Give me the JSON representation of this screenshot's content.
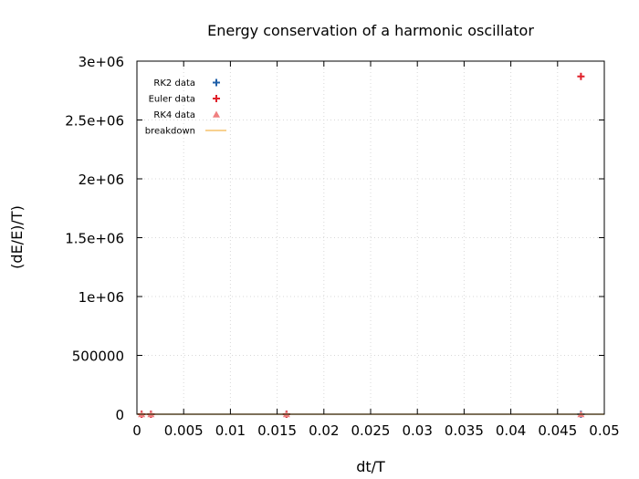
{
  "chart_data": {
    "type": "scatter",
    "title": "Energy conservation of a harmonic oscillator",
    "xlabel": "dt/T",
    "ylabel": "(dE/E)/T)",
    "xlim": [
      0,
      0.05
    ],
    "ylim": [
      0,
      3000000
    ],
    "xticks": [
      0,
      0.005,
      0.01,
      0.015,
      0.02,
      0.025,
      0.03,
      0.035,
      0.04,
      0.045,
      0.05
    ],
    "xtick_labels": [
      "0",
      "0.005",
      "0.01",
      "0.015",
      "0.02",
      "0.025",
      "0.03",
      "0.035",
      "0.04",
      "0.045",
      "0.05"
    ],
    "yticks": [
      0,
      500000,
      1000000,
      1500000,
      2000000,
      2500000,
      3000000
    ],
    "ytick_labels": [
      "0",
      "500000",
      "1e+06",
      "1.5e+06",
      "2e+06",
      "2.5e+06",
      "3e+06"
    ],
    "grid": true,
    "legend_position": "top-left",
    "series": [
      {
        "name": "RK2 data",
        "marker": "plus",
        "color": "#1f5fa8",
        "x": [
          0.0005,
          0.0015,
          0.016,
          0.0475
        ],
        "y": [
          0,
          0,
          0,
          0
        ]
      },
      {
        "name": "Euler data",
        "marker": "plus",
        "color": "#e0202a",
        "x": [
          0.0005,
          0.0015,
          0.016,
          0.0475
        ],
        "y": [
          0,
          0,
          200,
          2870000
        ]
      },
      {
        "name": "RK4 data",
        "marker": "triangle",
        "color": "#f08080",
        "x": [
          0.0005,
          0.0015,
          0.016,
          0.0475
        ],
        "y": [
          0,
          0,
          0,
          0
        ]
      },
      {
        "name": "breakdown",
        "marker": "line",
        "color": "#f5c26b",
        "x": [
          0,
          0.05
        ],
        "y": [
          0,
          0
        ]
      }
    ]
  }
}
